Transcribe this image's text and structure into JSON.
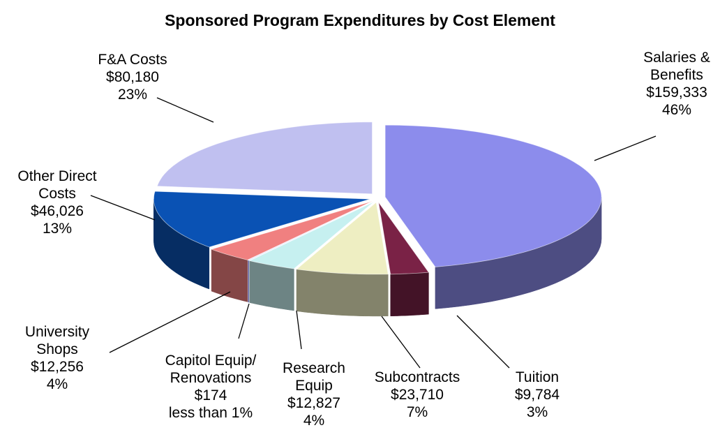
{
  "chart_data": {
    "type": "pie",
    "title": "Sponsored Program Expenditures by Cost Element",
    "categories": [
      "Salaries & Benefits",
      "Tuition",
      "Subcontracts",
      "Research Equip",
      "Capitol Equip/ Renovations",
      "University Shops",
      "Other Direct Costs",
      "F&A Costs"
    ],
    "values": [
      159333,
      9784,
      23710,
      12827,
      174,
      12256,
      46026,
      80180
    ],
    "value_labels": [
      "$159,333",
      "$9,784",
      "$23,710",
      "$12,827",
      "$174",
      "$12,256",
      "$46,026",
      "$80,180"
    ],
    "share_labels": [
      "46%",
      "3%",
      "7%",
      "4%",
      "less than 1%",
      "4%",
      "13%",
      "23%"
    ],
    "colors": [
      "#8c8cec",
      "#7a2246",
      "#eeeec2",
      "#c6f0f0",
      "#8080ff",
      "#f08080",
      "#0a52b4",
      "#c0c0f0"
    ]
  }
}
